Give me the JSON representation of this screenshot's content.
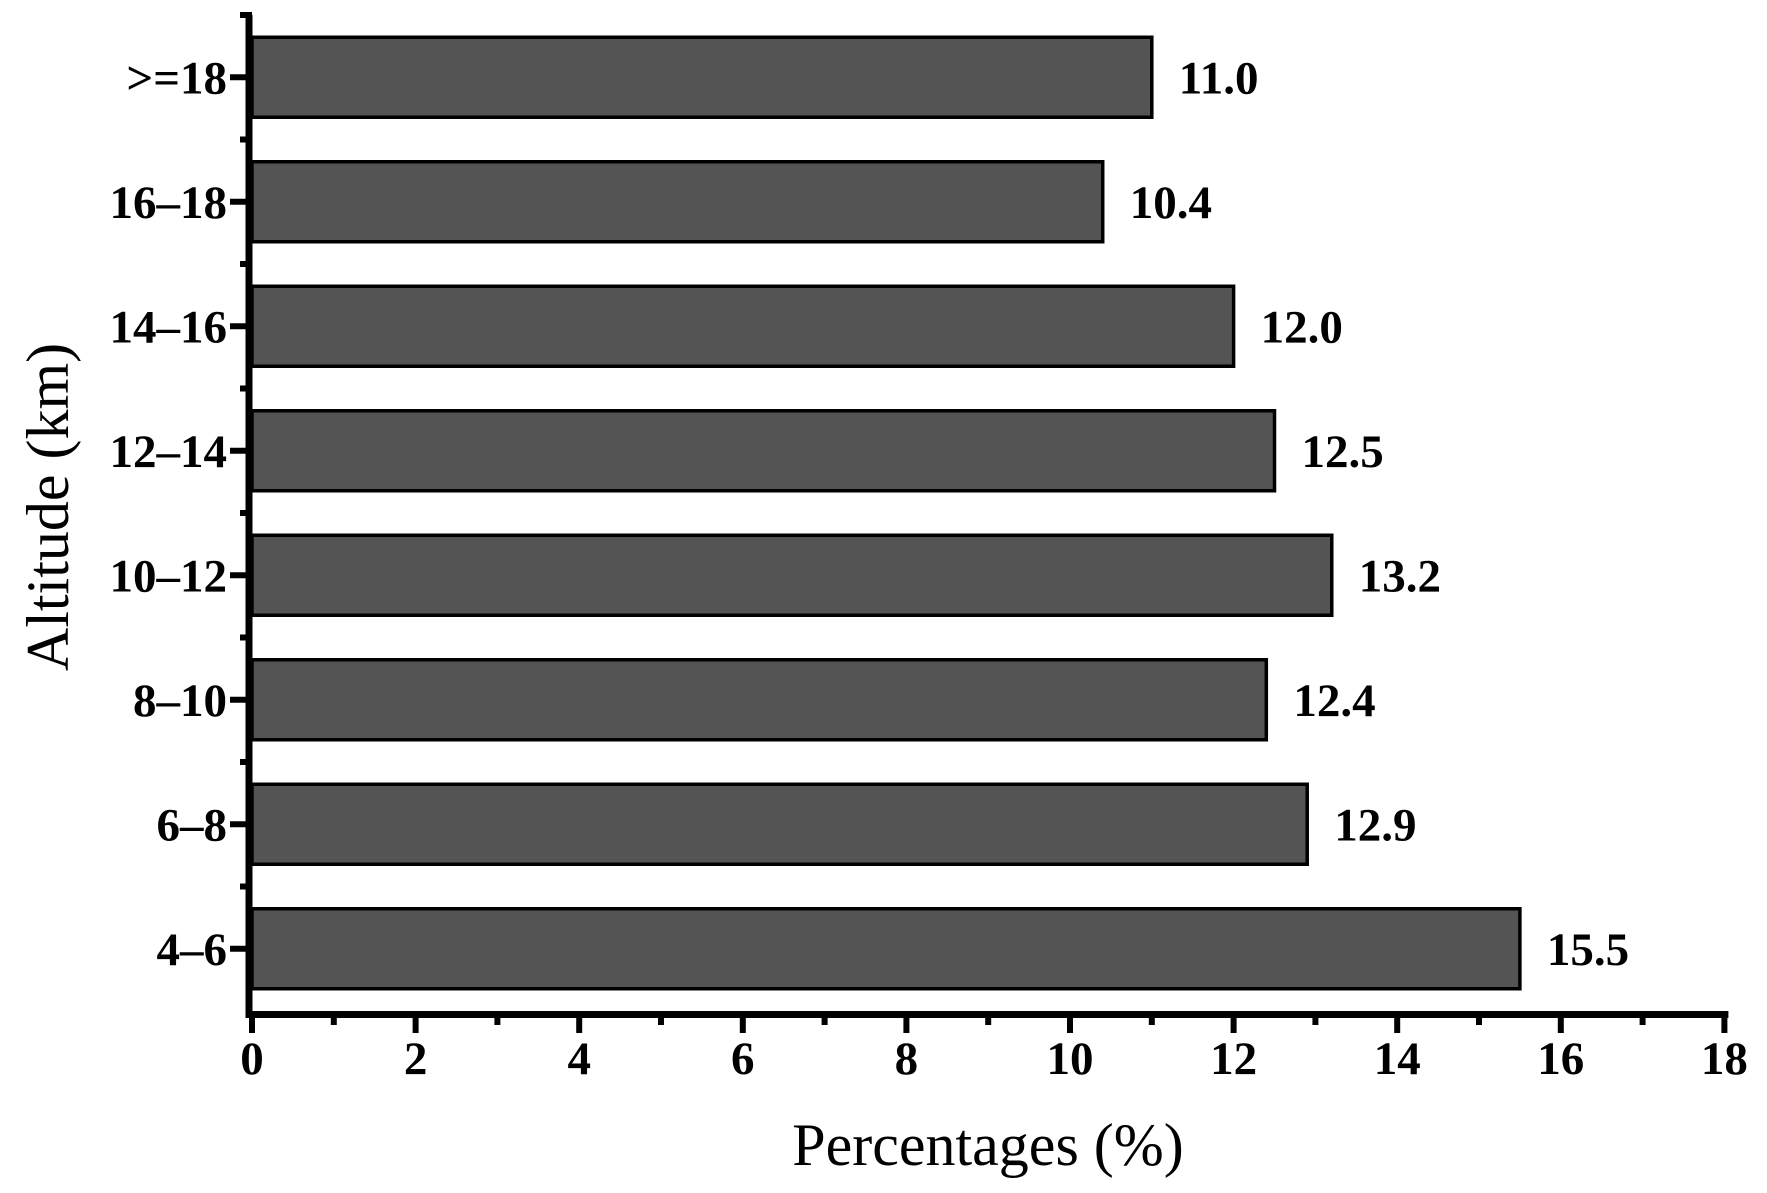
{
  "figure": {
    "background": "#ffffff",
    "axis_color": "#000000",
    "bar_fill": "#545454",
    "bar_stroke": "#000000"
  },
  "chart_data": {
    "type": "bar",
    "orientation": "horizontal",
    "title": "",
    "xlabel": "Percentages (%)",
    "ylabel": "Altitude (km)",
    "categories": [
      ">=18",
      "16–18",
      "14–16",
      "12–14",
      "10–12",
      "8–10",
      "6–8",
      "4–6"
    ],
    "values": [
      11.0,
      10.4,
      12.0,
      12.5,
      13.2,
      12.4,
      12.9,
      15.5
    ],
    "value_labels": [
      "11.0",
      "10.4",
      "12.0",
      "12.5",
      "13.2",
      "12.4",
      "12.9",
      "15.5"
    ],
    "xlim": [
      0,
      18
    ],
    "x_major_ticks": [
      0,
      2,
      4,
      6,
      8,
      10,
      12,
      14,
      16,
      18
    ],
    "x_minor_ticks": [
      1,
      3,
      5,
      7,
      9,
      11,
      13,
      15,
      17
    ],
    "grid": false,
    "legend": null
  }
}
